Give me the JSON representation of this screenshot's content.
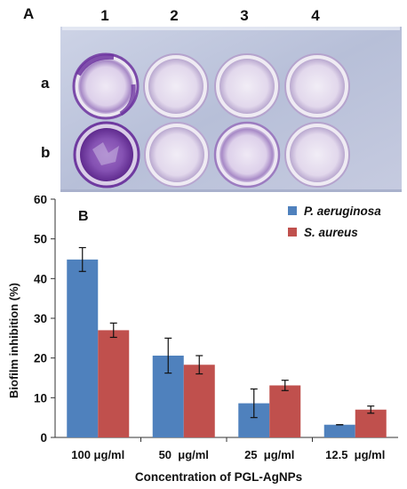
{
  "panel_a": {
    "label": "A",
    "columns": [
      "1",
      "2",
      "3",
      "4"
    ],
    "rows": [
      "a",
      "b"
    ],
    "colors": {
      "plate_bg": "#bfc7dd",
      "well_rim": "#e7e2ee",
      "stain_dark": "#7a3ea8",
      "stain_faint": "#d8cde6"
    }
  },
  "chart_data": {
    "type": "bar",
    "panel_label": "B",
    "categories": [
      "100 μg/ml",
      "50  μg/ml",
      "25  μg/ml",
      "12.5  μg/ml"
    ],
    "series": [
      {
        "name": "P. aeruginosa",
        "color": "#4f81bd",
        "values": [
          44.8,
          20.6,
          8.6,
          3.2
        ],
        "errors": [
          3.0,
          4.4,
          3.6,
          0.0
        ]
      },
      {
        "name": "S. aureus",
        "color": "#c0504d",
        "values": [
          27.0,
          18.3,
          13.1,
          7.0
        ],
        "errors": [
          1.8,
          2.3,
          1.3,
          0.9
        ]
      }
    ],
    "xlabel": "Concentration of PGL-AgNPs",
    "ylabel": "Biofilm inhibition  (%)",
    "ylim": [
      0,
      60
    ],
    "yticks": [
      0,
      10,
      20,
      30,
      40,
      50,
      60
    ],
    "grid": false,
    "legend": "top-right"
  }
}
